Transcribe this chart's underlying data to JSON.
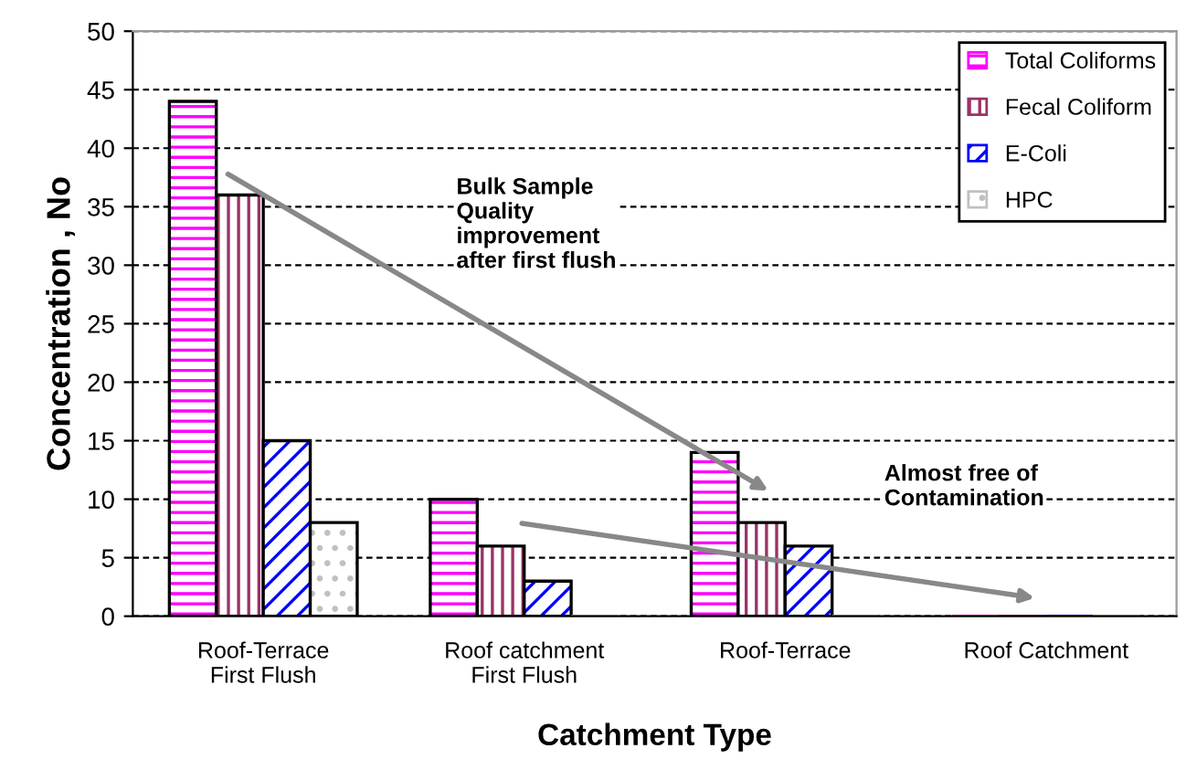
{
  "chart_data": {
    "type": "bar",
    "xlabel": "Catchment Type",
    "ylabel": "Concentration , No",
    "categories": [
      "Roof-Terrace\nFirst Flush",
      "Roof catchment\nFirst Flush",
      "Roof-Terrace",
      "Roof Catchment"
    ],
    "series": [
      {
        "name": "Total Coliforms",
        "color": "#ff00ff",
        "values": [
          44,
          10,
          14,
          0
        ]
      },
      {
        "name": "Fecal Coliform",
        "color": "#993366",
        "values": [
          36,
          6,
          8,
          0
        ]
      },
      {
        "name": "E-Coli",
        "color": "#0000ff",
        "values": [
          15,
          3,
          6,
          0
        ]
      },
      {
        "name": "HPC",
        "color": "#c0c0c0",
        "values": [
          8,
          0,
          0,
          0
        ]
      }
    ],
    "ylim": [
      0,
      50
    ],
    "yticks": [
      0,
      5,
      10,
      15,
      20,
      25,
      30,
      35,
      40,
      45,
      50
    ],
    "grid": "y",
    "legend": "top right",
    "annotations": [
      "Bulk Sample\nQuality\nimprovement\nafter first flush",
      "Almost free of\nContamination"
    ]
  }
}
